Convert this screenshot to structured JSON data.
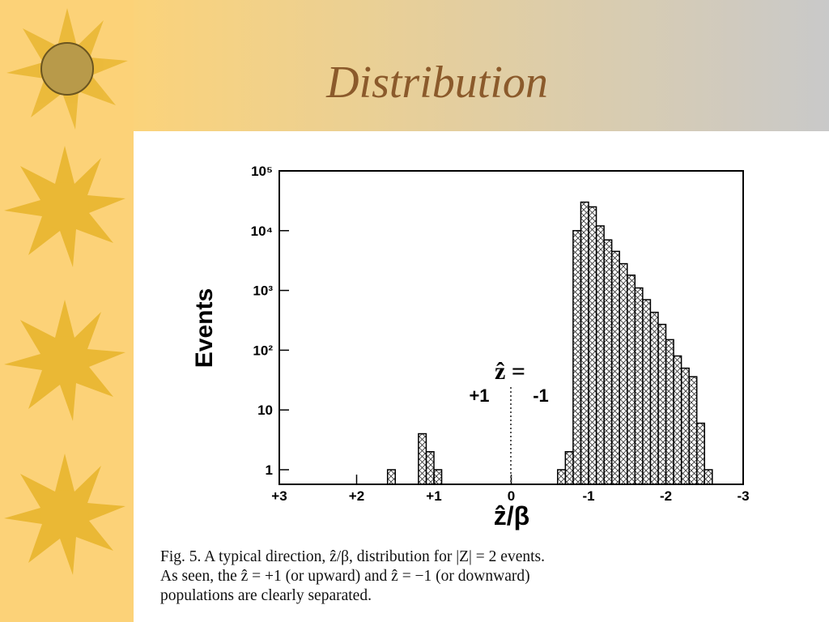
{
  "title": "Distribution",
  "chart_data": {
    "type": "histogram",
    "ylabel": "Events",
    "xlabel": "ẑ/β",
    "annotations": [
      "ẑ =",
      "+1",
      "-1"
    ],
    "bins": [
      -2.6,
      -2.5,
      -2.4,
      -2.3,
      -2.2,
      -2.1,
      -2.0,
      -1.9,
      -1.8,
      -1.7,
      -1.6,
      -1.5,
      -1.4,
      -1.3,
      -1.2,
      -1.1,
      -1.0,
      -0.9,
      -0.8,
      -0.7,
      -0.6,
      -0.5,
      -0.4,
      -0.3,
      -0.2,
      -0.1,
      0.0,
      0.1,
      0.2,
      0.3,
      0.4,
      0.5,
      0.6,
      0.7,
      0.8,
      0.9,
      1.0,
      1.1,
      1.2,
      1.3,
      1.4,
      1.5,
      1.6
    ],
    "counts": [
      1,
      6,
      36,
      50,
      80,
      150,
      270,
      430,
      700,
      1100,
      1800,
      2800,
      4500,
      7000,
      12000,
      25000,
      30000,
      10000,
      2,
      1,
      0,
      0,
      0,
      0,
      0,
      0,
      0,
      0,
      0,
      0,
      0,
      0,
      0,
      0,
      0,
      1,
      2,
      4,
      0,
      0,
      0,
      1
    ],
    "xlim": [
      3,
      -3
    ],
    "ylim": [
      0.57,
      100000
    ],
    "log_y": true,
    "xticks": [
      {
        "value": 3,
        "label": "+3"
      },
      {
        "value": 2,
        "label": "+2"
      },
      {
        "value": 1,
        "label": "+1"
      },
      0,
      -1,
      -2,
      -3
    ],
    "yticks": [
      1,
      10,
      {
        "value": 100,
        "label": "10²"
      },
      {
        "value": 1000,
        "label": "10³"
      },
      {
        "value": 10000,
        "label": "10⁴"
      },
      {
        "value": 100000,
        "label": "10⁵"
      }
    ],
    "color": "#000000"
  },
  "caption": [
    "Fig. 5. A typical direction, ẑ/β, distribution for |Z| = 2 events.",
    "As seen, the ẑ = +1 (or upward) and ẑ = −1 (or downward)",
    "populations are clearly separated."
  ]
}
